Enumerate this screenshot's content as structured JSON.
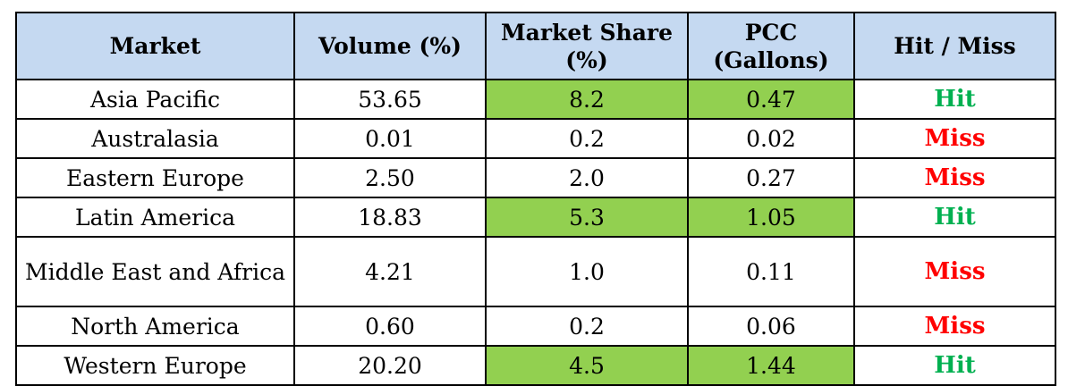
{
  "colors": {
    "header_background": "#c5d9f1",
    "highlight": "#92d050",
    "hit": "#00b050",
    "miss": "#ff0000"
  },
  "table": {
    "headers": {
      "market": "Market",
      "volume": "Volume (%)",
      "market_share": "Market Share (%)",
      "pcc": "PCC (Gallons)",
      "hit_miss": "Hit / Miss"
    },
    "rows": [
      {
        "market": "Asia Pacific",
        "volume": "53.65",
        "market_share": "8.2",
        "pcc": "0.47",
        "status": "Hit",
        "highlight_share": true,
        "highlight_pcc": true
      },
      {
        "market": "Australasia",
        "volume": "0.01",
        "market_share": "0.2",
        "pcc": "0.02",
        "status": "Miss",
        "highlight_share": false,
        "highlight_pcc": false
      },
      {
        "market": "Eastern Europe",
        "volume": "2.50",
        "market_share": "2.0",
        "pcc": "0.27",
        "status": "Miss",
        "highlight_share": false,
        "highlight_pcc": false
      },
      {
        "market": "Latin America",
        "volume": "18.83",
        "market_share": "5.3",
        "pcc": "1.05",
        "status": "Hit",
        "highlight_share": true,
        "highlight_pcc": true
      },
      {
        "market": "Middle East and Africa",
        "volume": "4.21",
        "market_share": "1.0",
        "pcc": "0.11",
        "status": "Miss",
        "highlight_share": false,
        "highlight_pcc": false
      },
      {
        "market": "North America",
        "volume": "0.60",
        "market_share": "0.2",
        "pcc": "0.06",
        "status": "Miss",
        "highlight_share": false,
        "highlight_pcc": false
      },
      {
        "market": "Western Europe",
        "volume": "20.20",
        "market_share": "4.5",
        "pcc": "1.44",
        "status": "Hit",
        "highlight_share": true,
        "highlight_pcc": true
      }
    ]
  }
}
